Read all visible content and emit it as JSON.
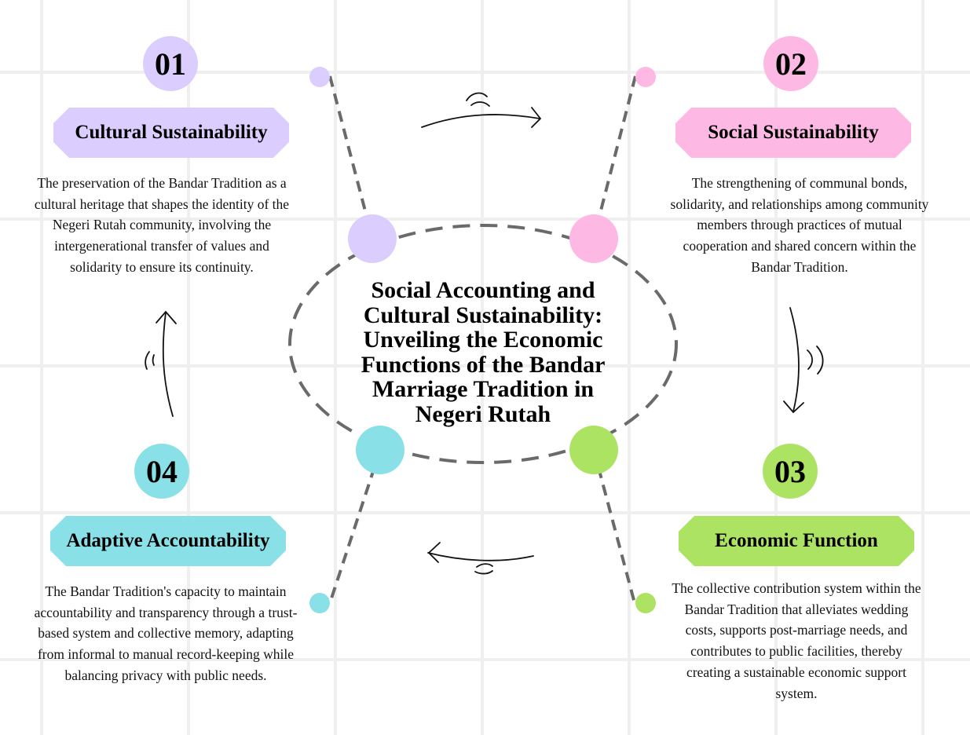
{
  "title": "Social Accounting and Cultural Sustainability: Unveiling the Economic Functions of the Bandar Marriage Tradition in Negeri Rutah",
  "colors": {
    "purple": "#dbcdfd",
    "pink": "#fdb9e3",
    "green": "#ace363",
    "cyan": "#89e0e6",
    "dash": "#6a6a6a"
  },
  "items": [
    {
      "number": "01",
      "label": "Cultural Sustainability",
      "description": "The preservation of the Bandar Tradition as a cultural heritage that shapes the identity of the Negeri Rutah community, involving the intergenerational transfer of values and solidarity to ensure its continuity."
    },
    {
      "number": "02",
      "label": "Social Sustainability",
      "description": "The strengthening of communal bonds, solidarity, and relationships among community members through practices of mutual cooperation and shared concern within the Bandar Tradition."
    },
    {
      "number": "03",
      "label": "Economic Function",
      "description": "The collective contribution system within the Bandar Tradition that alleviates wedding costs, supports post-marriage needs, and contributes to public facilities, thereby creating a sustainable economic support system."
    },
    {
      "number": "04",
      "label": "Adaptive Accountability",
      "description": "The Bandar Tradition's capacity to maintain accountability and transparency through a trust-based system and collective memory, adapting from informal to manual record-keeping while balancing privacy with public needs."
    }
  ]
}
